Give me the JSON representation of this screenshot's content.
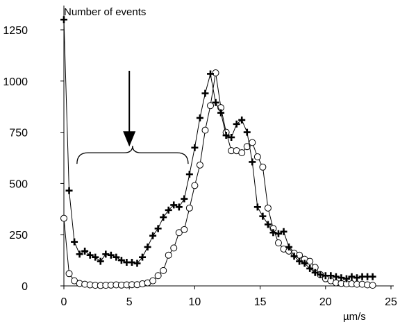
{
  "chart_data": {
    "type": "line",
    "title": "",
    "ylabel": "Number of events",
    "xlabel": "µm/s",
    "xlim": [
      0,
      25
    ],
    "ylim": [
      0,
      1250
    ],
    "x_ticks": [
      0,
      5,
      10,
      15,
      20,
      25
    ],
    "y_ticks": [
      0,
      250,
      500,
      750,
      1000,
      1250
    ],
    "x_tick_labels": [
      "0",
      "5",
      "10",
      "15",
      "20",
      "25"
    ],
    "y_tick_labels": [
      "0",
      "250",
      "500",
      "750",
      "1000",
      "1250"
    ],
    "grid": false,
    "legend": "none",
    "series": [
      {
        "marker": "circle",
        "color": "#000000",
        "marker_fill": "#ffffff",
        "points": [
          [
            0,
            330
          ],
          [
            0.4,
            60
          ],
          [
            0.8,
            25
          ],
          [
            1.2,
            12
          ],
          [
            1.6,
            8
          ],
          [
            2.0,
            5
          ],
          [
            2.4,
            3
          ],
          [
            2.8,
            2
          ],
          [
            3.2,
            3
          ],
          [
            3.6,
            4
          ],
          [
            4.0,
            5
          ],
          [
            4.4,
            4
          ],
          [
            4.8,
            5
          ],
          [
            5.2,
            6
          ],
          [
            5.6,
            6
          ],
          [
            6.0,
            10
          ],
          [
            6.4,
            15
          ],
          [
            6.8,
            25
          ],
          [
            7.2,
            50
          ],
          [
            7.6,
            75
          ],
          [
            8.0,
            150
          ],
          [
            8.4,
            185
          ],
          [
            8.8,
            260
          ],
          [
            9.2,
            275
          ],
          [
            9.6,
            380
          ],
          [
            10.0,
            490
          ],
          [
            10.4,
            590
          ],
          [
            10.8,
            760
          ],
          [
            11.2,
            880
          ],
          [
            11.6,
            1040
          ],
          [
            12.0,
            870
          ],
          [
            12.4,
            750
          ],
          [
            12.8,
            660
          ],
          [
            13.2,
            660
          ],
          [
            13.6,
            650
          ],
          [
            14.0,
            680
          ],
          [
            14.4,
            700
          ],
          [
            14.8,
            630
          ],
          [
            15.2,
            580
          ],
          [
            15.6,
            380
          ],
          [
            16.0,
            280
          ],
          [
            16.4,
            210
          ],
          [
            16.8,
            180
          ],
          [
            17.2,
            170
          ],
          [
            17.6,
            160
          ],
          [
            18.0,
            150
          ],
          [
            18.4,
            130
          ],
          [
            18.8,
            120
          ],
          [
            19.2,
            90
          ],
          [
            19.6,
            55
          ],
          [
            20.0,
            35
          ],
          [
            20.4,
            25
          ],
          [
            20.8,
            15
          ],
          [
            21.2,
            12
          ],
          [
            21.6,
            10
          ],
          [
            22.0,
            10
          ],
          [
            22.4,
            8
          ],
          [
            22.8,
            8
          ],
          [
            23.2,
            5
          ],
          [
            23.6,
            3
          ]
        ]
      },
      {
        "marker": "plus",
        "color": "#000000",
        "marker_fill": "#000000",
        "points": [
          [
            0,
            1300
          ],
          [
            0.4,
            465
          ],
          [
            0.8,
            215
          ],
          [
            1.2,
            155
          ],
          [
            1.6,
            170
          ],
          [
            2.0,
            150
          ],
          [
            2.4,
            140
          ],
          [
            2.8,
            120
          ],
          [
            3.2,
            155
          ],
          [
            3.6,
            150
          ],
          [
            4.0,
            140
          ],
          [
            4.4,
            125
          ],
          [
            4.8,
            115
          ],
          [
            5.2,
            115
          ],
          [
            5.6,
            110
          ],
          [
            6.0,
            140
          ],
          [
            6.4,
            190
          ],
          [
            6.8,
            245
          ],
          [
            7.2,
            280
          ],
          [
            7.6,
            335
          ],
          [
            8.0,
            370
          ],
          [
            8.4,
            395
          ],
          [
            8.8,
            385
          ],
          [
            9.2,
            425
          ],
          [
            9.6,
            545
          ],
          [
            10.0,
            675
          ],
          [
            10.4,
            820
          ],
          [
            10.8,
            940
          ],
          [
            11.2,
            1035
          ],
          [
            11.6,
            895
          ],
          [
            12.0,
            845
          ],
          [
            12.4,
            735
          ],
          [
            12.8,
            725
          ],
          [
            13.2,
            790
          ],
          [
            13.6,
            810
          ],
          [
            14.0,
            750
          ],
          [
            14.4,
            605
          ],
          [
            14.8,
            385
          ],
          [
            15.2,
            340
          ],
          [
            15.6,
            300
          ],
          [
            16.0,
            260
          ],
          [
            16.4,
            255
          ],
          [
            16.8,
            265
          ],
          [
            17.2,
            190
          ],
          [
            17.6,
            145
          ],
          [
            18.0,
            120
          ],
          [
            18.4,
            110
          ],
          [
            18.8,
            85
          ],
          [
            19.2,
            65
          ],
          [
            19.6,
            55
          ],
          [
            20.0,
            50
          ],
          [
            20.4,
            50
          ],
          [
            20.8,
            45
          ],
          [
            21.2,
            40
          ],
          [
            21.6,
            35
          ],
          [
            22.0,
            45
          ],
          [
            22.4,
            40
          ],
          [
            22.8,
            45
          ],
          [
            23.2,
            45
          ],
          [
            23.6,
            45
          ]
        ]
      }
    ],
    "annotations": [
      {
        "type": "arrow",
        "x": 5.0,
        "y_from": 1050,
        "y_to": 680,
        "color": "#000000"
      },
      {
        "type": "brace",
        "x_from": 1.0,
        "x_to": 9.5,
        "y": 650,
        "color": "#000000"
      }
    ]
  }
}
